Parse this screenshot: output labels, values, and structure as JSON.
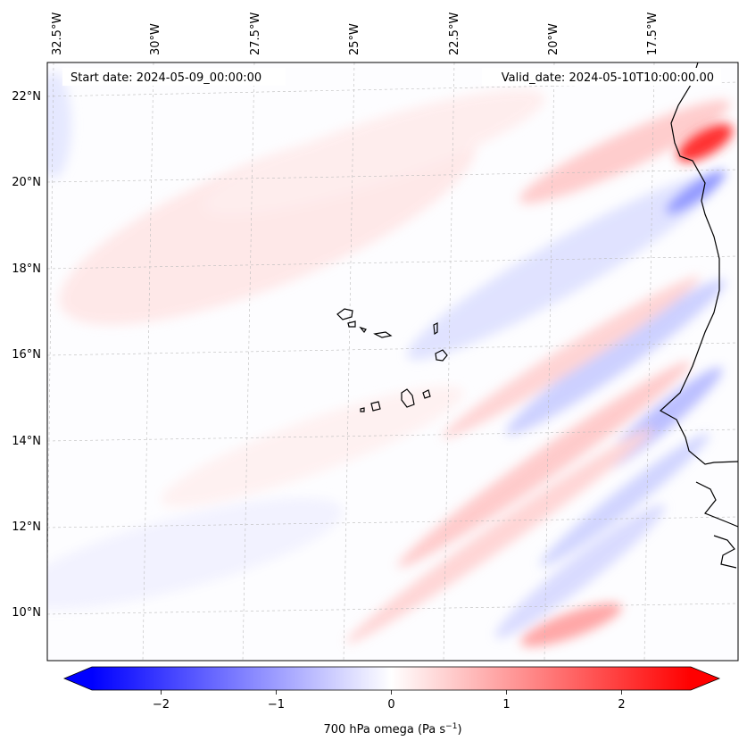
{
  "map": {
    "start_date": "Start date: 2024-05-09_00:00:00",
    "valid_date": "Valid_date: 2024-05-10T10:00:00.00",
    "lon_labels": [
      "32.5°W",
      "30°W",
      "27.5°W",
      "25°W",
      "22.5°W",
      "20°W",
      "17.5°W"
    ],
    "lat_labels": [
      "22°N",
      "20°N",
      "18°N",
      "16°N",
      "14°N",
      "12°N",
      "10°N"
    ],
    "field": "700 hPa omega",
    "colors": {
      "negative": "#0000ff",
      "zero": "#ffffff",
      "positive": "#ff0000",
      "coastline": "#000000",
      "gridline": "#bbbbbb"
    }
  },
  "colorbar": {
    "label": "700 hPa omega (Pa s",
    "label_exp": "−1",
    "label_close": ")",
    "ticks": [
      "−2",
      "−1",
      "0",
      "1",
      "2"
    ],
    "tick_values": [
      -2,
      -1,
      0,
      1,
      2
    ],
    "range": [
      -2.6,
      2.6
    ],
    "extend": "both"
  }
}
